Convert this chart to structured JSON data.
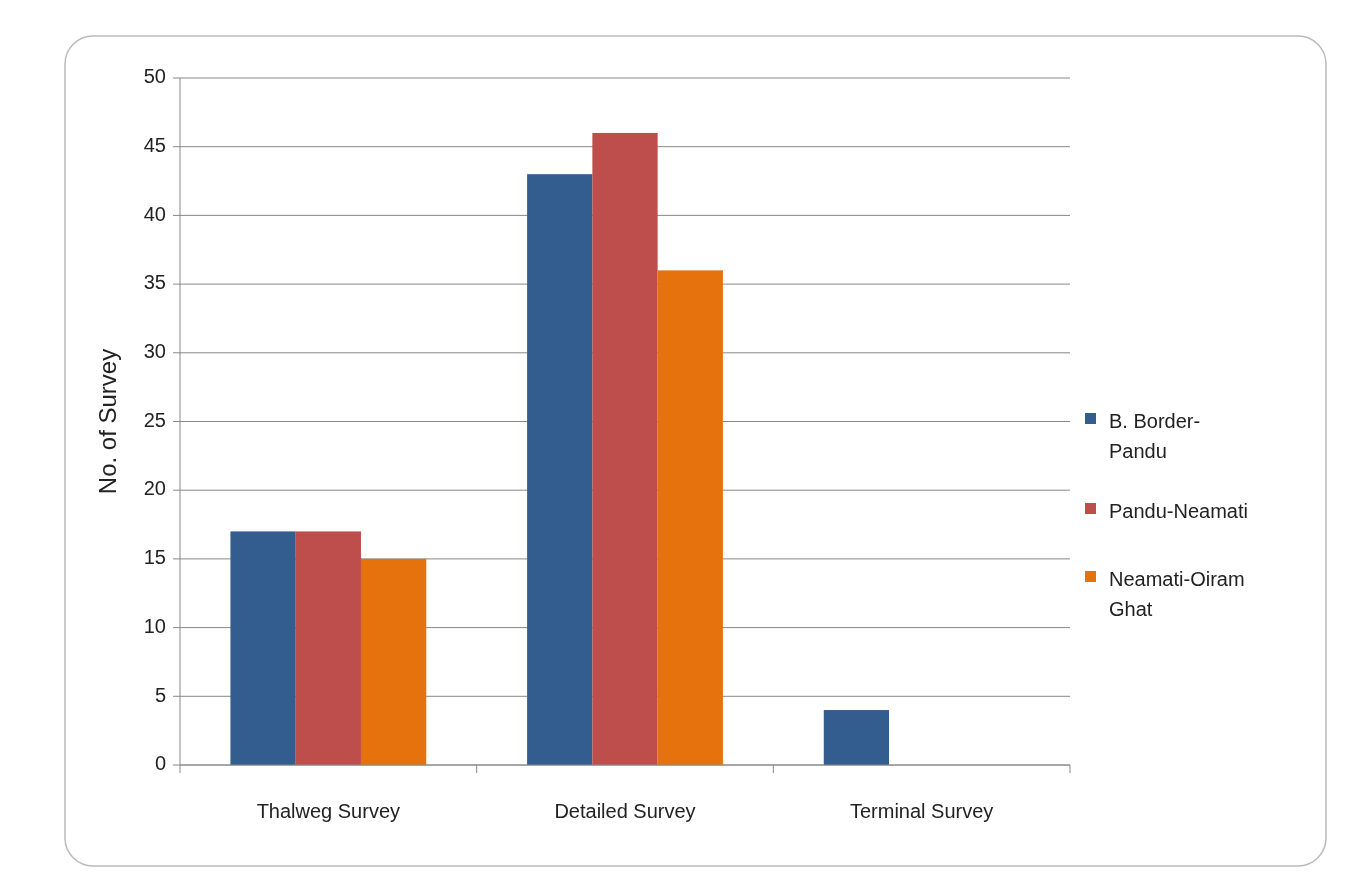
{
  "chart_data": {
    "type": "bar",
    "ylabel": "No. of Survey",
    "categories": [
      "Thalweg Survey",
      "Detailed Survey",
      "Terminal Survey"
    ],
    "series": [
      {
        "name": "B. Border- Pandu",
        "color": "#335c8f",
        "values": [
          17,
          43,
          4
        ]
      },
      {
        "name": "Pandu-Neamati",
        "color": "#bd4e4b",
        "values": [
          17,
          46,
          0
        ]
      },
      {
        "name": "Neamati-Oiram Ghat",
        "color": "#e6720e",
        "values": [
          15,
          36,
          0
        ]
      }
    ],
    "ylim": [
      0,
      50
    ],
    "yticks": [
      0,
      5,
      10,
      15,
      20,
      25,
      30,
      35,
      40,
      45,
      50
    ],
    "grid": "y",
    "legend": "right"
  }
}
